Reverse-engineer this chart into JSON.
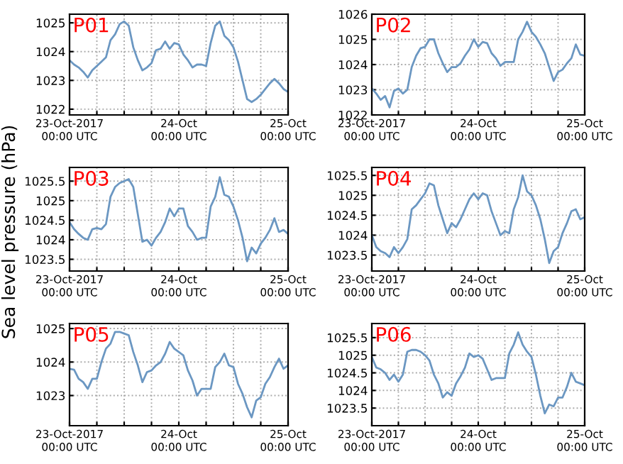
{
  "chart_data": [
    {
      "type": "line",
      "title": "P01",
      "ylabel": "Sea level pressure (hPa)",
      "color": "#6b97c2",
      "grid": true,
      "xlim": [
        "2017-10-23T00:00",
        "2017-10-25T00:00"
      ],
      "ylim": [
        1021.8,
        1025.3
      ],
      "yticks": [
        1022,
        1023,
        1024,
        1025
      ],
      "xticks": [
        {
          "value": "2017-10-23T00:00",
          "label": "23-Oct-2017\n00:00 UTC"
        },
        {
          "value": "2017-10-23T06:00",
          "label": null
        },
        {
          "value": "2017-10-23T12:00",
          "label": null
        },
        {
          "value": "2017-10-23T18:00",
          "label": null
        },
        {
          "value": "2017-10-24T00:00",
          "label": "24-Oct\n00:00 UTC"
        },
        {
          "value": "2017-10-24T06:00",
          "label": null
        },
        {
          "value": "2017-10-24T12:00",
          "label": null
        },
        {
          "value": "2017-10-24T18:00",
          "label": null
        },
        {
          "value": "2017-10-25T00:00",
          "label": "25-Oct\n00:00 UTC"
        }
      ],
      "x": [
        "2017-10-23T00:00",
        "2017-10-23T01:00",
        "2017-10-23T02:00",
        "2017-10-23T03:00",
        "2017-10-23T04:00",
        "2017-10-23T05:00",
        "2017-10-23T06:00",
        "2017-10-23T07:00",
        "2017-10-23T08:00",
        "2017-10-23T09:00",
        "2017-10-23T10:00",
        "2017-10-23T11:00",
        "2017-10-23T12:00",
        "2017-10-23T13:00",
        "2017-10-23T14:00",
        "2017-10-23T15:00",
        "2017-10-23T16:00",
        "2017-10-23T17:00",
        "2017-10-23T18:00",
        "2017-10-23T19:00",
        "2017-10-23T20:00",
        "2017-10-23T21:00",
        "2017-10-23T22:00",
        "2017-10-23T23:00",
        "2017-10-24T00:00",
        "2017-10-24T01:00",
        "2017-10-24T02:00",
        "2017-10-24T03:00",
        "2017-10-24T04:00",
        "2017-10-24T05:00",
        "2017-10-24T06:00",
        "2017-10-24T07:00",
        "2017-10-24T08:00",
        "2017-10-24T09:00",
        "2017-10-24T10:00",
        "2017-10-24T11:00",
        "2017-10-24T12:00",
        "2017-10-24T13:00",
        "2017-10-24T14:00",
        "2017-10-24T15:00",
        "2017-10-24T16:00",
        "2017-10-24T17:00",
        "2017-10-24T18:00",
        "2017-10-24T19:00",
        "2017-10-24T20:00",
        "2017-10-24T21:00",
        "2017-10-24T22:00",
        "2017-10-24T23:00",
        "2017-10-25T00:00"
      ],
      "values": [
        1023.7,
        1023.55,
        1023.45,
        1023.3,
        1023.1,
        1023.35,
        1023.5,
        1023.65,
        1023.8,
        1024.4,
        1024.6,
        1024.95,
        1025.05,
        1024.9,
        1024.15,
        1023.7,
        1023.35,
        1023.45,
        1023.6,
        1024.05,
        1024.1,
        1024.35,
        1024.1,
        1024.3,
        1024.25,
        1023.9,
        1023.7,
        1023.45,
        1023.55,
        1023.55,
        1023.5,
        1024.3,
        1024.9,
        1025.05,
        1024.55,
        1024.4,
        1024.15,
        1023.65,
        1023.0,
        1022.35,
        1022.25,
        1022.35,
        1022.5,
        1022.7,
        1022.9,
        1023.05,
        1022.9,
        1022.7,
        1022.6
      ]
    },
    {
      "type": "line",
      "title": "P02",
      "color": "#6b97c2",
      "grid": true,
      "xlim": [
        "2017-10-23T00:00",
        "2017-10-25T00:00"
      ],
      "ylim": [
        1022,
        1026
      ],
      "yticks": [
        1022,
        1023,
        1024,
        1025,
        1026
      ],
      "xticks": [
        {
          "value": "2017-10-23T00:00",
          "label": "23-Oct-2017\n00:00 UTC"
        },
        {
          "value": "2017-10-23T06:00",
          "label": null
        },
        {
          "value": "2017-10-23T12:00",
          "label": null
        },
        {
          "value": "2017-10-23T18:00",
          "label": null
        },
        {
          "value": "2017-10-24T00:00",
          "label": "24-Oct\n00:00 UTC"
        },
        {
          "value": "2017-10-24T06:00",
          "label": null
        },
        {
          "value": "2017-10-24T12:00",
          "label": null
        },
        {
          "value": "2017-10-24T18:00",
          "label": null
        },
        {
          "value": "2017-10-25T00:00",
          "label": "25-Oct\n00:00 UTC"
        }
      ],
      "x": [
        "2017-10-23T00:00",
        "2017-10-23T01:00",
        "2017-10-23T02:00",
        "2017-10-23T03:00",
        "2017-10-23T04:00",
        "2017-10-23T05:00",
        "2017-10-23T06:00",
        "2017-10-23T07:00",
        "2017-10-23T08:00",
        "2017-10-23T09:00",
        "2017-10-23T10:00",
        "2017-10-23T11:00",
        "2017-10-23T12:00",
        "2017-10-23T13:00",
        "2017-10-23T14:00",
        "2017-10-23T15:00",
        "2017-10-23T16:00",
        "2017-10-23T17:00",
        "2017-10-23T18:00",
        "2017-10-23T19:00",
        "2017-10-23T20:00",
        "2017-10-23T21:00",
        "2017-10-23T22:00",
        "2017-10-23T23:00",
        "2017-10-24T00:00",
        "2017-10-24T01:00",
        "2017-10-24T02:00",
        "2017-10-24T03:00",
        "2017-10-24T04:00",
        "2017-10-24T05:00",
        "2017-10-24T06:00",
        "2017-10-24T07:00",
        "2017-10-24T08:00",
        "2017-10-24T09:00",
        "2017-10-24T10:00",
        "2017-10-24T11:00",
        "2017-10-24T12:00",
        "2017-10-24T13:00",
        "2017-10-24T14:00",
        "2017-10-24T15:00",
        "2017-10-24T16:00",
        "2017-10-24T17:00",
        "2017-10-24T18:00",
        "2017-10-24T19:00",
        "2017-10-24T20:00",
        "2017-10-24T21:00",
        "2017-10-24T22:00",
        "2017-10-24T23:00",
        "2017-10-25T00:00"
      ],
      "values": [
        1023.05,
        1022.85,
        1022.6,
        1022.75,
        1022.3,
        1022.95,
        1023.05,
        1022.85,
        1023.0,
        1023.9,
        1024.35,
        1024.65,
        1024.7,
        1025.0,
        1025.0,
        1024.45,
        1024.05,
        1023.7,
        1023.9,
        1023.9,
        1024.05,
        1024.35,
        1024.6,
        1025.0,
        1024.7,
        1024.9,
        1024.85,
        1024.45,
        1024.25,
        1023.95,
        1024.1,
        1024.1,
        1024.1,
        1025.0,
        1025.3,
        1025.7,
        1025.3,
        1025.1,
        1024.8,
        1024.45,
        1023.9,
        1023.35,
        1023.7,
        1023.8,
        1024.05,
        1024.25,
        1024.8,
        1024.4,
        1024.35
      ]
    },
    {
      "type": "line",
      "title": "P03",
      "color": "#6b97c2",
      "grid": true,
      "xlim": [
        "2017-10-23T00:00",
        "2017-10-25T00:00"
      ],
      "ylim": [
        1023.2,
        1025.85
      ],
      "yticks": [
        1023.5,
        1024,
        1024.5,
        1025,
        1025.5
      ],
      "xticks": [
        {
          "value": "2017-10-23T00:00",
          "label": "23-Oct-2017\n00:00 UTC"
        },
        {
          "value": "2017-10-23T06:00",
          "label": null
        },
        {
          "value": "2017-10-23T12:00",
          "label": null
        },
        {
          "value": "2017-10-23T18:00",
          "label": null
        },
        {
          "value": "2017-10-24T00:00",
          "label": "24-Oct\n00:00 UTC"
        },
        {
          "value": "2017-10-24T06:00",
          "label": null
        },
        {
          "value": "2017-10-24T12:00",
          "label": null
        },
        {
          "value": "2017-10-24T18:00",
          "label": null
        },
        {
          "value": "2017-10-25T00:00",
          "label": "25-Oct\n00:00 UTC"
        }
      ],
      "x": [
        "2017-10-23T00:00",
        "2017-10-23T01:00",
        "2017-10-23T02:00",
        "2017-10-23T03:00",
        "2017-10-23T04:00",
        "2017-10-23T05:00",
        "2017-10-23T06:00",
        "2017-10-23T07:00",
        "2017-10-23T08:00",
        "2017-10-23T09:00",
        "2017-10-23T10:00",
        "2017-10-23T11:00",
        "2017-10-23T12:00",
        "2017-10-23T13:00",
        "2017-10-23T14:00",
        "2017-10-23T15:00",
        "2017-10-23T16:00",
        "2017-10-23T17:00",
        "2017-10-23T18:00",
        "2017-10-23T19:00",
        "2017-10-23T20:00",
        "2017-10-23T21:00",
        "2017-10-23T22:00",
        "2017-10-23T23:00",
        "2017-10-24T00:00",
        "2017-10-24T01:00",
        "2017-10-24T02:00",
        "2017-10-24T03:00",
        "2017-10-24T04:00",
        "2017-10-24T05:00",
        "2017-10-24T06:00",
        "2017-10-24T07:00",
        "2017-10-24T08:00",
        "2017-10-24T09:00",
        "2017-10-24T10:00",
        "2017-10-24T11:00",
        "2017-10-24T12:00",
        "2017-10-24T13:00",
        "2017-10-24T14:00",
        "2017-10-24T15:00",
        "2017-10-24T16:00",
        "2017-10-24T17:00",
        "2017-10-24T18:00",
        "2017-10-24T19:00",
        "2017-10-24T20:00",
        "2017-10-24T21:00",
        "2017-10-24T22:00",
        "2017-10-24T23:00",
        "2017-10-25T00:00"
      ],
      "values": [
        1024.45,
        1024.27,
        1024.15,
        1024.05,
        1024.0,
        1024.27,
        1024.3,
        1024.27,
        1024.4,
        1025.1,
        1025.35,
        1025.45,
        1025.5,
        1025.55,
        1025.35,
        1024.65,
        1023.95,
        1024.0,
        1023.85,
        1024.05,
        1024.2,
        1024.45,
        1024.8,
        1024.6,
        1024.8,
        1024.8,
        1024.35,
        1024.2,
        1024.0,
        1024.05,
        1024.05,
        1024.85,
        1025.1,
        1025.6,
        1025.15,
        1025.1,
        1024.85,
        1024.5,
        1024.05,
        1023.45,
        1023.8,
        1023.65,
        1023.9,
        1024.05,
        1024.25,
        1024.55,
        1024.2,
        1024.25,
        1024.15
      ]
    },
    {
      "type": "line",
      "title": "P04",
      "color": "#6b97c2",
      "grid": true,
      "xlim": [
        "2017-10-23T00:00",
        "2017-10-25T00:00"
      ],
      "ylim": [
        1023.1,
        1025.7
      ],
      "yticks": [
        1023.5,
        1024,
        1024.5,
        1025,
        1025.5
      ],
      "xticks": [
        {
          "value": "2017-10-23T00:00",
          "label": "23-Oct-2017\n00:00 UTC"
        },
        {
          "value": "2017-10-23T06:00",
          "label": null
        },
        {
          "value": "2017-10-23T12:00",
          "label": null
        },
        {
          "value": "2017-10-23T18:00",
          "label": null
        },
        {
          "value": "2017-10-24T00:00",
          "label": "24-Oct\n00:00 UTC"
        },
        {
          "value": "2017-10-24T06:00",
          "label": null
        },
        {
          "value": "2017-10-24T12:00",
          "label": null
        },
        {
          "value": "2017-10-24T18:00",
          "label": null
        },
        {
          "value": "2017-10-25T00:00",
          "label": "25-Oct\n00:00 UTC"
        }
      ],
      "x": [
        "2017-10-23T00:00",
        "2017-10-23T01:00",
        "2017-10-23T02:00",
        "2017-10-23T03:00",
        "2017-10-23T04:00",
        "2017-10-23T05:00",
        "2017-10-23T06:00",
        "2017-10-23T07:00",
        "2017-10-23T08:00",
        "2017-10-23T09:00",
        "2017-10-23T10:00",
        "2017-10-23T11:00",
        "2017-10-23T12:00",
        "2017-10-23T13:00",
        "2017-10-23T14:00",
        "2017-10-23T15:00",
        "2017-10-23T16:00",
        "2017-10-23T17:00",
        "2017-10-23T18:00",
        "2017-10-23T19:00",
        "2017-10-23T20:00",
        "2017-10-23T21:00",
        "2017-10-23T22:00",
        "2017-10-23T23:00",
        "2017-10-24T00:00",
        "2017-10-24T01:00",
        "2017-10-24T02:00",
        "2017-10-24T03:00",
        "2017-10-24T04:00",
        "2017-10-24T05:00",
        "2017-10-24T06:00",
        "2017-10-24T07:00",
        "2017-10-24T08:00",
        "2017-10-24T09:00",
        "2017-10-24T10:00",
        "2017-10-24T11:00",
        "2017-10-24T12:00",
        "2017-10-24T13:00",
        "2017-10-24T14:00",
        "2017-10-24T15:00",
        "2017-10-24T16:00",
        "2017-10-24T17:00",
        "2017-10-24T18:00",
        "2017-10-24T19:00",
        "2017-10-24T20:00",
        "2017-10-24T21:00",
        "2017-10-24T22:00",
        "2017-10-24T23:00",
        "2017-10-25T00:00"
      ],
      "values": [
        1024.0,
        1023.7,
        1023.6,
        1023.55,
        1023.45,
        1023.7,
        1023.55,
        1023.7,
        1023.9,
        1024.65,
        1024.75,
        1024.9,
        1025.05,
        1025.3,
        1025.25,
        1024.75,
        1024.4,
        1024.05,
        1024.3,
        1024.2,
        1024.4,
        1024.65,
        1024.9,
        1025.05,
        1024.9,
        1025.05,
        1025.0,
        1024.6,
        1024.3,
        1024.0,
        1024.1,
        1024.05,
        1024.65,
        1024.95,
        1025.5,
        1025.1,
        1025.0,
        1024.75,
        1024.4,
        1023.9,
        1023.3,
        1023.6,
        1023.7,
        1024.05,
        1024.3,
        1024.6,
        1024.65,
        1024.4,
        1024.45
      ]
    },
    {
      "type": "line",
      "title": "P05",
      "color": "#6b97c2",
      "grid": true,
      "xlim": [
        "2017-10-23T00:00",
        "2017-10-25T00:00"
      ],
      "ylim": [
        1022.1,
        1025.15
      ],
      "yticks": [
        1023,
        1024,
        1025
      ],
      "xticks": [
        {
          "value": "2017-10-23T00:00",
          "label": "23-Oct-2017\n00:00 UTC"
        },
        {
          "value": "2017-10-23T06:00",
          "label": null
        },
        {
          "value": "2017-10-23T12:00",
          "label": null
        },
        {
          "value": "2017-10-23T18:00",
          "label": null
        },
        {
          "value": "2017-10-24T00:00",
          "label": "24-Oct\n00:00 UTC"
        },
        {
          "value": "2017-10-24T06:00",
          "label": null
        },
        {
          "value": "2017-10-24T12:00",
          "label": null
        },
        {
          "value": "2017-10-24T18:00",
          "label": null
        },
        {
          "value": "2017-10-25T00:00",
          "label": "25-Oct\n00:00 UTC"
        }
      ],
      "x": [
        "2017-10-23T00:00",
        "2017-10-23T01:00",
        "2017-10-23T02:00",
        "2017-10-23T03:00",
        "2017-10-23T04:00",
        "2017-10-23T05:00",
        "2017-10-23T06:00",
        "2017-10-23T07:00",
        "2017-10-23T08:00",
        "2017-10-23T09:00",
        "2017-10-23T10:00",
        "2017-10-23T11:00",
        "2017-10-23T12:00",
        "2017-10-23T13:00",
        "2017-10-23T14:00",
        "2017-10-23T15:00",
        "2017-10-23T16:00",
        "2017-10-23T17:00",
        "2017-10-23T18:00",
        "2017-10-23T19:00",
        "2017-10-23T20:00",
        "2017-10-23T21:00",
        "2017-10-23T22:00",
        "2017-10-23T23:00",
        "2017-10-24T00:00",
        "2017-10-24T01:00",
        "2017-10-24T02:00",
        "2017-10-24T03:00",
        "2017-10-24T04:00",
        "2017-10-24T05:00",
        "2017-10-24T06:00",
        "2017-10-24T07:00",
        "2017-10-24T08:00",
        "2017-10-24T09:00",
        "2017-10-24T10:00",
        "2017-10-24T11:00",
        "2017-10-24T12:00",
        "2017-10-24T13:00",
        "2017-10-24T14:00",
        "2017-10-24T15:00",
        "2017-10-24T16:00",
        "2017-10-24T17:00",
        "2017-10-24T18:00",
        "2017-10-24T19:00",
        "2017-10-24T20:00",
        "2017-10-24T21:00",
        "2017-10-24T22:00",
        "2017-10-24T23:00",
        "2017-10-25T00:00"
      ],
      "values": [
        1023.8,
        1023.77,
        1023.5,
        1023.4,
        1023.2,
        1023.5,
        1023.5,
        1024.0,
        1024.4,
        1024.55,
        1024.9,
        1024.9,
        1024.85,
        1024.8,
        1024.3,
        1023.9,
        1023.4,
        1023.7,
        1023.75,
        1023.9,
        1024.0,
        1024.25,
        1024.6,
        1024.4,
        1024.3,
        1024.2,
        1023.75,
        1023.45,
        1023.0,
        1023.2,
        1023.2,
        1023.2,
        1023.85,
        1024.0,
        1024.25,
        1023.9,
        1023.85,
        1023.35,
        1023.05,
        1022.65,
        1022.35,
        1022.85,
        1022.95,
        1023.35,
        1023.55,
        1023.85,
        1024.1,
        1023.8,
        1023.9
      ]
    },
    {
      "type": "line",
      "title": "P06",
      "color": "#6b97c2",
      "grid": true,
      "xlim": [
        "2017-10-23T00:00",
        "2017-10-25T00:00"
      ],
      "ylim": [
        1023.0,
        1025.9
      ],
      "yticks": [
        1023.5,
        1024,
        1024.5,
        1025,
        1025.5
      ],
      "xticks": [
        {
          "value": "2017-10-23T00:00",
          "label": "23-Oct-2017\n00:00 UTC"
        },
        {
          "value": "2017-10-23T06:00",
          "label": null
        },
        {
          "value": "2017-10-23T12:00",
          "label": null
        },
        {
          "value": "2017-10-23T18:00",
          "label": null
        },
        {
          "value": "2017-10-24T00:00",
          "label": "24-Oct\n00:00 UTC"
        },
        {
          "value": "2017-10-24T06:00",
          "label": null
        },
        {
          "value": "2017-10-24T12:00",
          "label": null
        },
        {
          "value": "2017-10-24T18:00",
          "label": null
        },
        {
          "value": "2017-10-25T00:00",
          "label": "25-Oct\n00:00 UTC"
        }
      ],
      "x": [
        "2017-10-23T00:00",
        "2017-10-23T01:00",
        "2017-10-23T02:00",
        "2017-10-23T03:00",
        "2017-10-23T04:00",
        "2017-10-23T05:00",
        "2017-10-23T06:00",
        "2017-10-23T07:00",
        "2017-10-23T08:00",
        "2017-10-23T09:00",
        "2017-10-23T10:00",
        "2017-10-23T11:00",
        "2017-10-23T12:00",
        "2017-10-23T13:00",
        "2017-10-23T14:00",
        "2017-10-23T15:00",
        "2017-10-23T16:00",
        "2017-10-23T17:00",
        "2017-10-23T18:00",
        "2017-10-23T19:00",
        "2017-10-23T20:00",
        "2017-10-23T21:00",
        "2017-10-23T22:00",
        "2017-10-23T23:00",
        "2017-10-24T00:00",
        "2017-10-24T01:00",
        "2017-10-24T02:00",
        "2017-10-24T03:00",
        "2017-10-24T04:00",
        "2017-10-24T05:00",
        "2017-10-24T06:00",
        "2017-10-24T07:00",
        "2017-10-24T08:00",
        "2017-10-24T09:00",
        "2017-10-24T10:00",
        "2017-10-24T11:00",
        "2017-10-24T12:00",
        "2017-10-24T13:00",
        "2017-10-24T14:00",
        "2017-10-24T15:00",
        "2017-10-24T16:00",
        "2017-10-24T17:00",
        "2017-10-24T18:00",
        "2017-10-24T19:00",
        "2017-10-24T20:00",
        "2017-10-24T21:00",
        "2017-10-24T22:00",
        "2017-10-24T23:00",
        "2017-10-25T00:00"
      ],
      "values": [
        1024.95,
        1024.65,
        1024.6,
        1024.5,
        1024.3,
        1024.45,
        1024.25,
        1024.45,
        1025.1,
        1025.15,
        1025.15,
        1025.1,
        1025.0,
        1024.85,
        1024.45,
        1024.2,
        1023.8,
        1023.95,
        1023.85,
        1024.2,
        1024.4,
        1024.65,
        1025.05,
        1024.95,
        1025.0,
        1024.9,
        1024.6,
        1024.3,
        1024.35,
        1024.35,
        1024.35,
        1025.05,
        1025.3,
        1025.65,
        1025.3,
        1025.1,
        1024.95,
        1024.45,
        1023.85,
        1023.35,
        1023.6,
        1023.55,
        1023.8,
        1023.8,
        1024.1,
        1024.5,
        1024.25,
        1024.2,
        1024.15
      ]
    }
  ]
}
